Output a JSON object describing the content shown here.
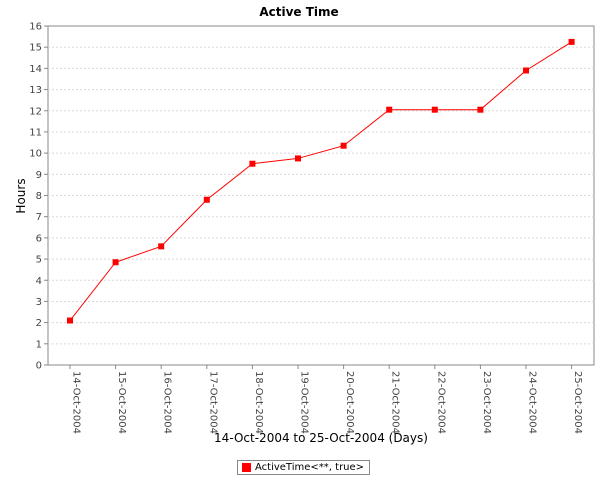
{
  "chart_data": {
    "type": "line",
    "title": "Active Time",
    "xlabel": "14-Oct-2004 to 25-Oct-2004 (Days)",
    "ylabel": "Hours",
    "categories": [
      "14-Oct-2004",
      "15-Oct-2004",
      "16-Oct-2004",
      "17-Oct-2004",
      "18-Oct-2004",
      "19-Oct-2004",
      "20-Oct-2004",
      "21-Oct-2004",
      "22-Oct-2004",
      "23-Oct-2004",
      "24-Oct-2004",
      "25-Oct-2004"
    ],
    "series": [
      {
        "name": "ActiveTime<**, true>",
        "color": "#ff0000",
        "values": [
          2.1,
          4.85,
          5.6,
          7.8,
          9.5,
          9.75,
          10.35,
          12.05,
          12.05,
          12.05,
          13.9,
          15.25
        ]
      }
    ],
    "ylim": [
      0,
      16
    ],
    "yticks": [
      0,
      1,
      2,
      3,
      4,
      5,
      6,
      7,
      8,
      9,
      10,
      11,
      12,
      13,
      14,
      15,
      16
    ],
    "grid": true,
    "legend_position": "bottom-center"
  }
}
